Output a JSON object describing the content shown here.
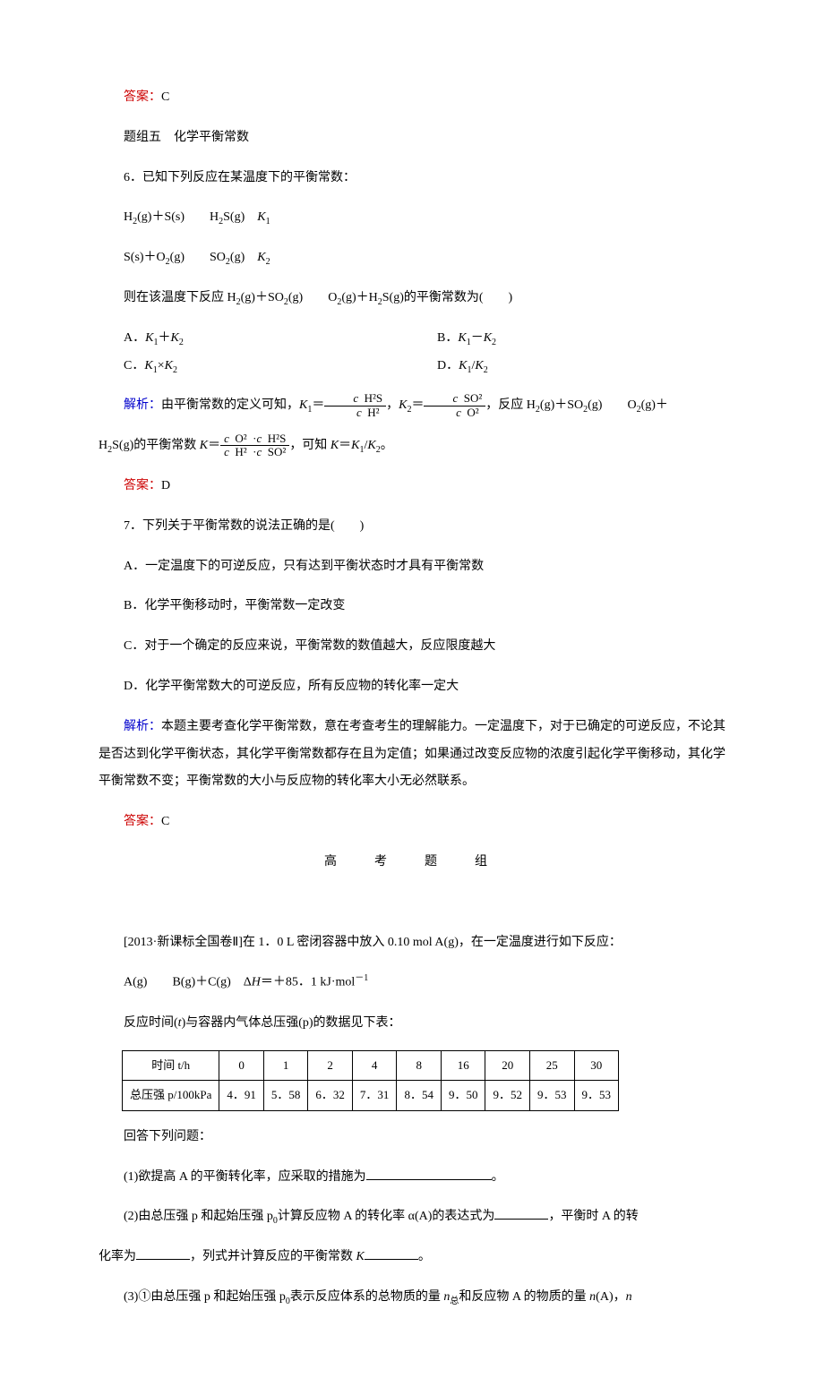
{
  "ans1": {
    "label": "答案：",
    "val": "C"
  },
  "group5": "题组五　化学平衡常数",
  "q6": {
    "stem": "6．已知下列反应在某温度下的平衡常数：",
    "r1a": "H",
    "r1b": "(g)＋S(s)",
    "r1c": "H",
    "r1d": "S(g)　",
    "r1e": "K",
    "r2a": "S(s)＋O",
    "r2b": "(g)",
    "r2c": "SO",
    "r2d": "(g)　",
    "r2e": "K",
    "stem2a": "则在该温度下反应 H",
    "stem2b": "(g)＋SO",
    "stem2c": "(g)",
    "stem2d": "O",
    "stem2e": "(g)＋H",
    "stem2f": "S(g)的平衡常数为(　　)",
    "optA": "A．",
    "optAv1": "K",
    "optAv2": "＋",
    "optAv3": "K",
    "optB": "B．",
    "optBv1": "K",
    "optBv2": "－",
    "optBv3": "K",
    "optC": "C．",
    "optCv1": "K",
    "optCv2": "×",
    "optCv3": "K",
    "optD": "D．",
    "optDv1": "K",
    "optDv2": "/",
    "optDv3": "K",
    "expl_label": "解析：",
    "expl1": "由平衡常数的定义可知，",
    "k1": "K",
    "eq": "＝",
    "num1a": "c",
    "num1b": "H²S",
    "den1a": "c",
    "den1b": "H²",
    "comma": "，",
    "num2a": "c",
    "num2b": "SO²",
    "den2a": "c",
    "den2b": "O²",
    "expl2a": "，反应 H",
    "expl2b": "(g)＋SO",
    "expl2c": "(g)",
    "expl2d": "O",
    "expl2e": "(g)＋",
    "expl3a": "H",
    "expl3b": "S(g)的平衡常数 ",
    "expl3c": "K",
    "expl3d": "＝",
    "num3a": "c",
    "num3b": "O²",
    "num3c": "·",
    "num3d": "c",
    "num3e": "H²S",
    "den3a": "c",
    "den3b": "H²",
    "den3c": "·",
    "den3d": "c",
    "den3e": "SO²",
    "expl4a": "，可知 ",
    "expl4b": "K",
    "expl4c": "＝",
    "expl4d": "K",
    "expl4e": "/",
    "expl4f": "K",
    "expl4g": "。"
  },
  "ans2": {
    "label": "答案：",
    "val": "D"
  },
  "q7": {
    "stem": "7．下列关于平衡常数的说法正确的是(　　)",
    "A": "A．一定温度下的可逆反应，只有达到平衡状态时才具有平衡常数",
    "B": "B．化学平衡移动时，平衡常数一定改变",
    "C": "C．对于一个确定的反应来说，平衡常数的数值越大，反应限度越大",
    "D": "D．化学平衡常数大的可逆反应，所有反应物的转化率一定大",
    "expl_label": "解析：",
    "expl": "本题主要考查化学平衡常数，意在考查考生的理解能力。一定温度下，对于已确定的可逆反应，不论其是否达到化学平衡状态，其化学平衡常数都存在且为定值；如果通过改变反应物的浓度引起化学平衡移动，其化学平衡常数不变；平衡常数的大小与反应物的转化率大小无必然联系。"
  },
  "ans3": {
    "label": "答案：",
    "val": "C"
  },
  "gk": "高　考　题　组",
  "gkq": {
    "stem": "[2013·新课标全国卷Ⅱ]在 1．0 L 密闭容器中放入 0.10 mol A(g)，在一定温度进行如下反应：",
    "rxn1": "A(g)",
    "rxn2": "B(g)＋C(g)　Δ",
    "rxn3": "H",
    "rxn4": "＝＋85．1 kJ·mol",
    "rxn5": "－1",
    "tbl_intro1": "反应时间(",
    "tbl_intro_t": "t",
    "tbl_intro2": ")与容器内气体总压强(p)的数据见下表：",
    "headers": [
      "时间 t/h",
      "0",
      "1",
      "2",
      "4",
      "8",
      "16",
      "20",
      "25",
      "30"
    ],
    "row1_label": "总压强 p/100kPa",
    "row1": [
      "4．91",
      "5．58",
      "6．32",
      "7．31",
      "8．54",
      "9．50",
      "9．52",
      "9．53",
      "9．53"
    ],
    "after": "回答下列问题：",
    "p1": "(1)欲提高 A 的平衡转化率，应采取的措施为",
    "p1b": "。",
    "p2a": "(2)由总压强 p 和起始压强 p",
    "p2b": "计算反应物 A 的转化率 α(A)的表达式为",
    "p2c": "，平衡时 A 的转",
    "p2d": "化率为",
    "p2e": "，列式并计算反应的平衡常数 ",
    "p2f": "K",
    "p2g": "。",
    "p3a": "(3)①由总压强 p 和起始压强 p",
    "p3b": "表示反应体系的总物质的量 ",
    "p3c": "n",
    "p3d": "总",
    "p3e": "和反应物 A 的物质的量 ",
    "p3f": "n",
    "p3g": "(A)，",
    "p3h": "n"
  },
  "table_style": {
    "border_color": "#000000",
    "cell_padding": "2px 8px",
    "font_size": 13
  }
}
